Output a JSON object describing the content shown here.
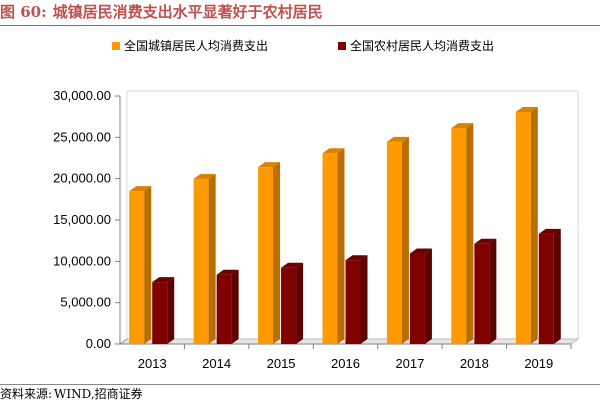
{
  "figure": {
    "number": "图 60:",
    "title": "城镇居民消费支出水平显著好于农村居民"
  },
  "source": {
    "label": "资料来源:",
    "text": "WIND,招商证券"
  },
  "chart_data": {
    "type": "bar",
    "title": "",
    "xlabel": "",
    "ylabel": "",
    "unit_label": "元",
    "categories": [
      "2013",
      "2014",
      "2015",
      "2016",
      "2017",
      "2018",
      "2019"
    ],
    "series": [
      {
        "name": "全国城镇居民人均消费支出",
        "color": "#ff9900",
        "values": [
          18488,
          19968,
          21392,
          23079,
          24445,
          26112,
          28063
        ]
      },
      {
        "name": "全国农村居民人均消费支出",
        "color": "#800000",
        "values": [
          7485,
          8383,
          9223,
          10130,
          10955,
          12124,
          13328
        ]
      }
    ],
    "ylim": [
      0,
      30000
    ],
    "yticks": [
      0,
      5000,
      10000,
      15000,
      20000,
      25000,
      30000
    ],
    "ytick_labels": [
      "0.00",
      "5,000.00",
      "10,000.00",
      "15,000.00",
      "20,000.00",
      "25,000.00",
      "30,000.00"
    ],
    "legend_position": "top",
    "grid": false
  }
}
